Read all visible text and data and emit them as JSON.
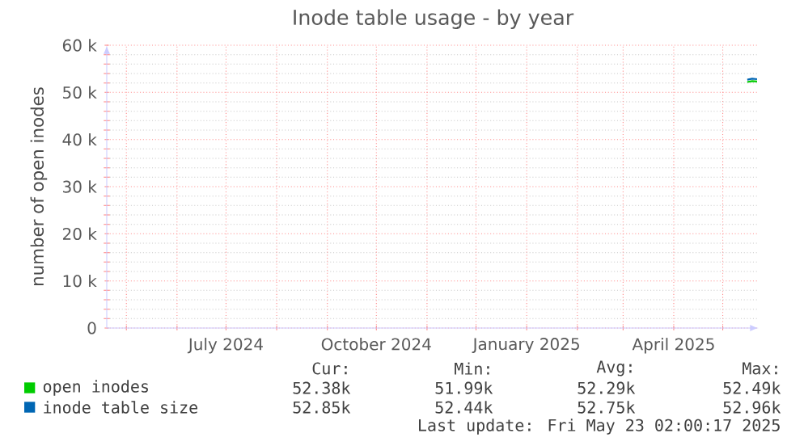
{
  "chart_data": {
    "type": "line",
    "title": "Inode table usage - by year",
    "ylabel": "number of open inodes",
    "xlim": [
      "2024-04-19",
      "2025-05-23"
    ],
    "xticks": [
      {
        "value": "2024-05-01",
        "label": null
      },
      {
        "value": "2024-06-01",
        "label": null
      },
      {
        "value": "2024-07-01",
        "label": "July 2024"
      },
      {
        "value": "2024-08-01",
        "label": null
      },
      {
        "value": "2024-09-01",
        "label": null
      },
      {
        "value": "2024-10-01",
        "label": "October 2024"
      },
      {
        "value": "2024-11-01",
        "label": null
      },
      {
        "value": "2024-12-01",
        "label": null
      },
      {
        "value": "2025-01-01",
        "label": "January 2025"
      },
      {
        "value": "2025-02-01",
        "label": null
      },
      {
        "value": "2025-03-01",
        "label": null
      },
      {
        "value": "2025-04-01",
        "label": "April 2025"
      },
      {
        "value": "2025-05-01",
        "label": null
      }
    ],
    "ylim": [
      0,
      60000
    ],
    "yticks": [
      {
        "value": 0,
        "label": "0"
      },
      {
        "value": 10000,
        "label": "10 k"
      },
      {
        "value": 20000,
        "label": "20 k"
      },
      {
        "value": 30000,
        "label": "30 k"
      },
      {
        "value": 40000,
        "label": "40 k"
      },
      {
        "value": 50000,
        "label": "50 k"
      },
      {
        "value": 60000,
        "label": "60 k"
      }
    ],
    "grid": true,
    "legend": "bottom",
    "x": [
      "2025-05-16",
      "2025-05-19",
      "2025-05-22"
    ],
    "series": [
      {
        "name": "open inodes",
        "color": "#00cc00",
        "values": [
          52200,
          52400,
          52300
        ]
      },
      {
        "name": "inode table size",
        "color": "#0066b3",
        "values": [
          52700,
          52900,
          52800
        ]
      }
    ],
    "annotations": [
      "Cur:",
      "Min:",
      "Avg:",
      "Max:",
      "52.38k",
      "51.99k",
      "52.29k",
      "52.49k",
      "52.85k",
      "52.44k",
      "52.75k",
      "52.96k",
      "Last update: Fri May 23 02:00:17 2025"
    ]
  }
}
